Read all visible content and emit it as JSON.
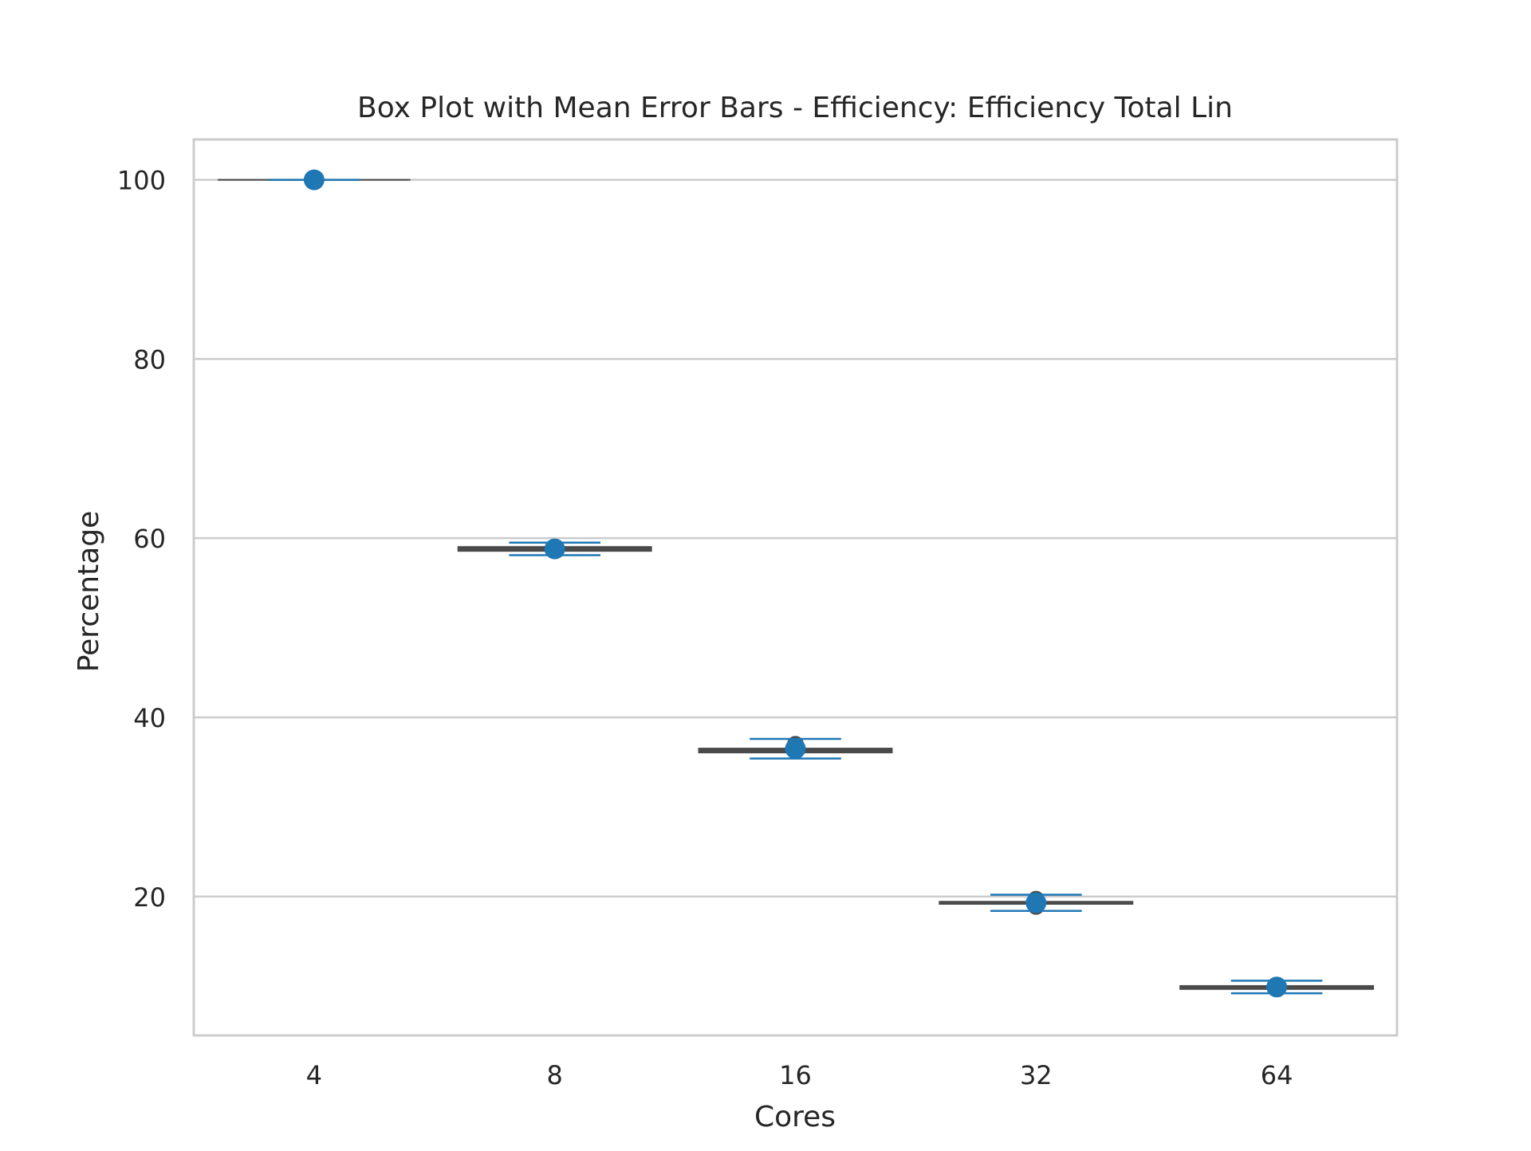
{
  "chart_data": {
    "type": "box",
    "title": "Box Plot with Mean Error Bars - Efficiency: Efficiency Total Lin",
    "xlabel": "Cores",
    "ylabel": "Percentage",
    "categories": [
      "4",
      "8",
      "16",
      "32",
      "64"
    ],
    "ylim": [
      4.5,
      104.5
    ],
    "yticks": [
      20,
      40,
      60,
      80,
      100
    ],
    "grid": "horizontal",
    "legend": "none",
    "boxes": [
      {
        "category": "4",
        "q1": 100.0,
        "median": 100.0,
        "q3": 100.0,
        "whisker_low": 100.0,
        "whisker_high": 100.0,
        "outliers": []
      },
      {
        "category": "8",
        "q1": 58.6,
        "median": 58.8,
        "q3": 59.0,
        "whisker_low": 58.6,
        "whisker_high": 59.0,
        "outliers": []
      },
      {
        "category": "16",
        "q1": 36.1,
        "median": 36.3,
        "q3": 36.5,
        "whisker_low": 36.1,
        "whisker_high": 36.5,
        "outliers": [
          37.0
        ]
      },
      {
        "category": "32",
        "q1": 19.2,
        "median": 19.3,
        "q3": 19.4,
        "whisker_low": 19.2,
        "whisker_high": 19.4,
        "outliers": [
          19.7,
          18.9
        ]
      },
      {
        "category": "64",
        "q1": 9.7,
        "median": 9.8,
        "q3": 10.0,
        "whisker_low": 9.7,
        "whisker_high": 10.0,
        "outliers": []
      }
    ],
    "means": [
      {
        "category": "4",
        "mean": 100.0,
        "err": 0.0
      },
      {
        "category": "8",
        "mean": 58.8,
        "err": 0.7
      },
      {
        "category": "16",
        "mean": 36.5,
        "err": 1.1
      },
      {
        "category": "32",
        "mean": 19.3,
        "err": 0.9
      },
      {
        "category": "64",
        "mean": 9.9,
        "err": 0.7
      }
    ],
    "colors": {
      "box_fill": "#c0392b",
      "box_edge": "#4a4a4a",
      "mean_marker": "#1f77b4",
      "error_bar": "#1f77b4",
      "grid": "#cccccc",
      "spine": "#cccccc",
      "text": "#262626"
    }
  }
}
